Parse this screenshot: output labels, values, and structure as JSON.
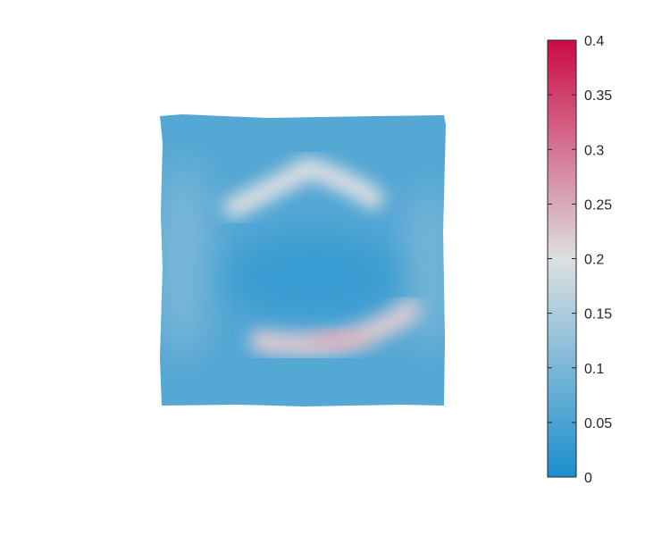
{
  "chart_data": {
    "type": "heatmap",
    "title": "",
    "xlabel": "",
    "ylabel": "",
    "axes_visible": false,
    "colorbar": {
      "placement": "right",
      "min": 0,
      "max": 0.4,
      "ticks": [
        0,
        0.05,
        0.1,
        0.15,
        0.2,
        0.25,
        0.3,
        0.35,
        0.4
      ],
      "tick_labels": [
        "0",
        "0.05",
        "0.1",
        "0.15",
        "0.2",
        "0.25",
        "0.3",
        "0.35",
        "0.4"
      ],
      "colormap": [
        "#1a8fce",
        "#dddfe1",
        "#cc0a45"
      ]
    },
    "field": {
      "background_value": 0.06,
      "features": [
        {
          "name": "upper arc",
          "peak_value": 0.2
        },
        {
          "name": "lower arc",
          "peak_value": 0.22,
          "core_value": 0.26
        },
        {
          "name": "left band",
          "peak_value": 0.1
        },
        {
          "name": "right band",
          "peak_value": 0.1
        },
        {
          "name": "center hole",
          "peak_value": 0.03
        }
      ]
    }
  }
}
